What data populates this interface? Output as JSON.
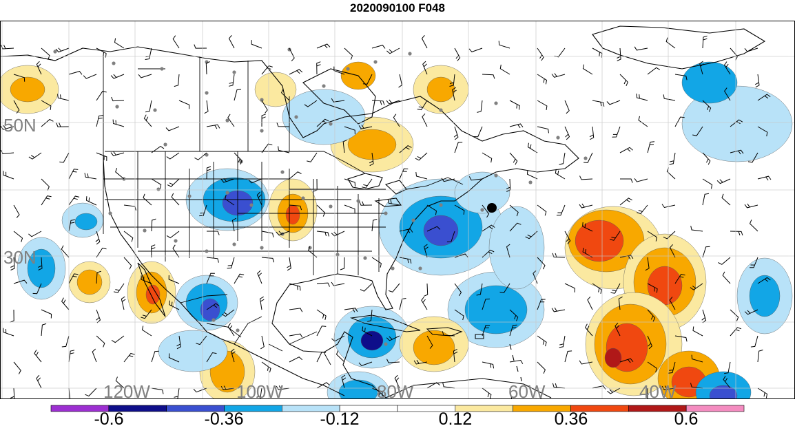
{
  "title": "2020090100 F048",
  "lat_labels": [
    "50N",
    "30N"
  ],
  "lon_labels": [
    "120W",
    "100W",
    "80W",
    "60W",
    "40W"
  ],
  "colorbar": {
    "colors": [
      "#9c2fd1",
      "#0e0e8a",
      "#3a4fd0",
      "#12a6e6",
      "#b8e2f8",
      "#ffffff",
      "#ffffff",
      "#fbe9a0",
      "#f8a800",
      "#f04810",
      "#b01818",
      "#f48cc0"
    ],
    "tick_labels": [
      "-0.6",
      "-0.36",
      "-0.12",
      "0.12",
      "0.36",
      "0.6"
    ]
  },
  "palette": {
    "neg_light": "#b8e2f8",
    "neg_mid": "#12a6e6",
    "neg_strong": "#3a4fd0",
    "neg_extreme": "#0e0e8a",
    "pos_light": "#fbe9a0",
    "pos_mid": "#f8a800",
    "pos_strong": "#f04810",
    "pos_extreme": "#b01818"
  },
  "marker": "black-dot"
}
